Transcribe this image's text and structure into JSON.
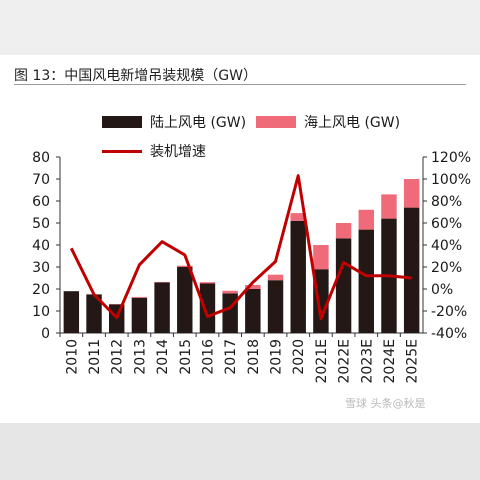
{
  "title": "图 13：中国风电新增吊装规模（GW）",
  "watermark": "雪球 头条@秋是",
  "colors": {
    "onshore": "#231815",
    "offshore": "#f06b7a",
    "growth_line": "#c00000"
  },
  "chart_data": {
    "type": "bar",
    "stacked": true,
    "categories": [
      "2010",
      "2011",
      "2012",
      "2013",
      "2014",
      "2015",
      "2016",
      "2017",
      "2018",
      "2019",
      "2020",
      "2021E",
      "2022E",
      "2023E",
      "2024E",
      "2025E"
    ],
    "series": [
      {
        "name": "陆上风电 (GW)",
        "type": "bar",
        "axis": "left",
        "values": [
          19,
          17.5,
          13,
          16,
          23,
          30,
          22.5,
          18,
          20,
          24,
          51,
          29,
          43,
          47,
          52,
          57
        ]
      },
      {
        "name": "海上风电 (GW)",
        "type": "bar",
        "axis": "left",
        "values": [
          0,
          0.1,
          0.2,
          0.4,
          0.2,
          0.6,
          0.6,
          1.2,
          1.8,
          2.5,
          3.5,
          11,
          7,
          9,
          11,
          13
        ]
      },
      {
        "name": "装机增速",
        "type": "line",
        "axis": "right",
        "values": [
          37,
          -5,
          -26,
          22,
          43,
          31,
          -25,
          -17,
          6,
          25,
          103,
          -27,
          24,
          12,
          12,
          10
        ]
      }
    ],
    "ylim_left": [
      0,
      80
    ],
    "yticks_left": [
      "0",
      "10",
      "20",
      "30",
      "40",
      "50",
      "60",
      "70",
      "80"
    ],
    "ylim_right": [
      -40,
      120
    ],
    "yticks_right": [
      "-40%",
      "-20%",
      "0%",
      "20%",
      "40%",
      "60%",
      "80%",
      "100%",
      "120%"
    ],
    "grid": false,
    "legend": "top"
  }
}
